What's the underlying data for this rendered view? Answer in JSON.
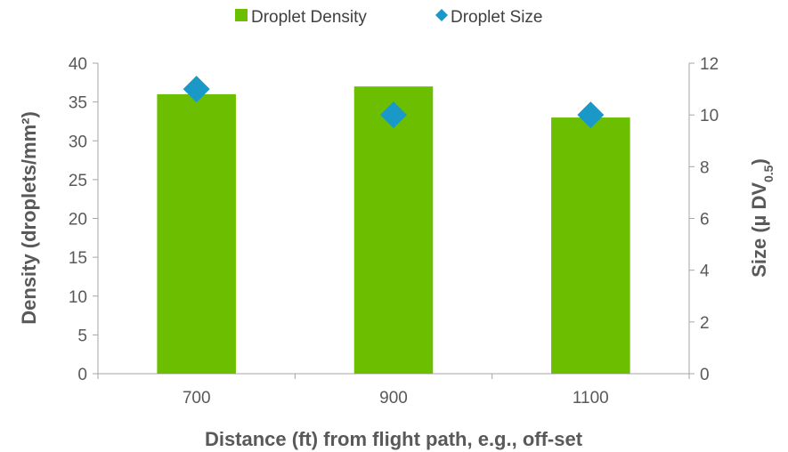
{
  "chart_data": {
    "type": "bar",
    "categories": [
      "700",
      "900",
      "1100"
    ],
    "series": [
      {
        "name": "Droplet Density",
        "kind": "bar",
        "axis": "left",
        "values": [
          36,
          37,
          33
        ],
        "color": "#6cbf00"
      },
      {
        "name": "Droplet Size",
        "kind": "scatter",
        "marker": "diamond",
        "axis": "right",
        "values": [
          11,
          10,
          10
        ],
        "color": "#1a98c7"
      }
    ],
    "xlabel": "Distance (ft) from flight path, e.g., off-set",
    "ylabel": "Density (droplets/mm²)",
    "y2label_main": "Size (µ DV",
    "y2label_sub": "0.5",
    "y2label_end": ")",
    "ylim": [
      0,
      40
    ],
    "yticks": [
      "0",
      "5",
      "10",
      "15",
      "20",
      "25",
      "30",
      "35",
      "40"
    ],
    "y2lim": [
      0,
      12
    ],
    "y2ticks": [
      "0",
      "2",
      "4",
      "6",
      "8",
      "10",
      "12"
    ],
    "legend_position": "top",
    "grid": false
  }
}
